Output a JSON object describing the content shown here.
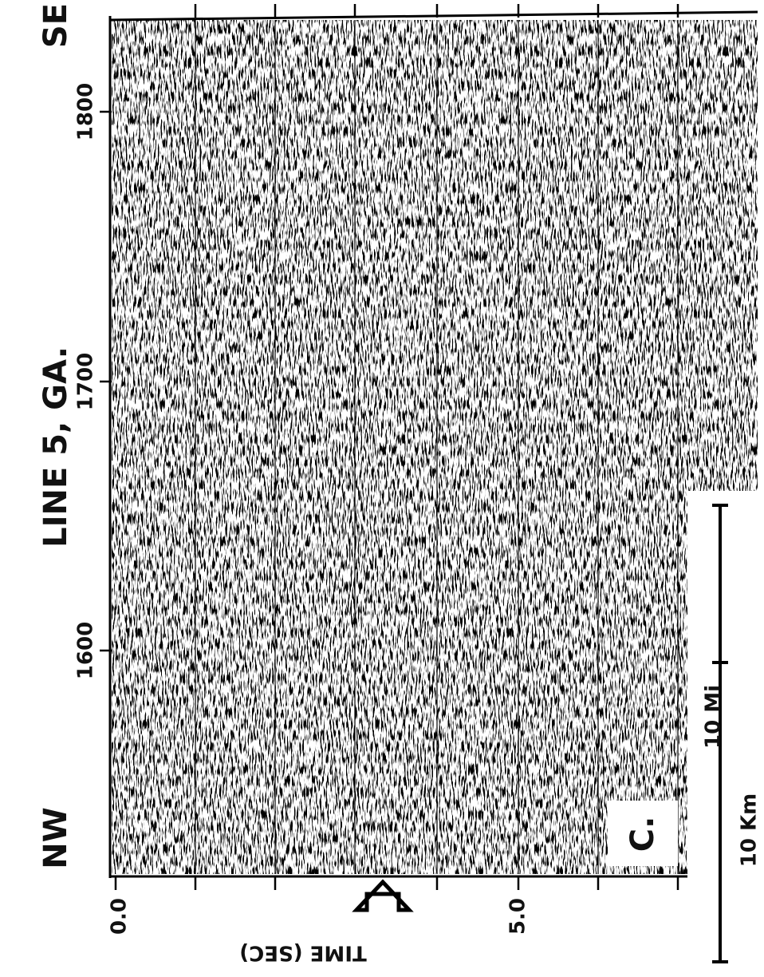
{
  "header": {
    "title": "LINE 5, GA.",
    "left": "NW",
    "right": "SE"
  },
  "shotpoints": [
    "1800",
    "1700",
    "1600"
  ],
  "time_axis": {
    "label": "TIME (SEC)",
    "ticks": [
      "0.0",
      "5.0"
    ]
  },
  "scale": {
    "miles": "10 Mi",
    "km": "10 Km"
  },
  "panel": "C."
}
